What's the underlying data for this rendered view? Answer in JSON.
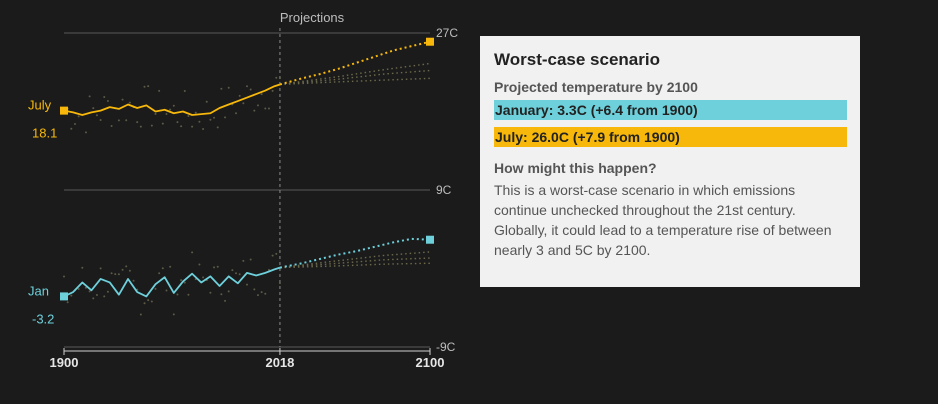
{
  "chart_data": {
    "type": "line",
    "projections_label": "Projections",
    "x_ticks": [
      1900,
      2018,
      2100
    ],
    "xlim": [
      1900,
      2100
    ],
    "split_year": 2018,
    "y_gridlines": [
      {
        "value": 27,
        "label": "27C"
      },
      {
        "value": 9,
        "label": "9C"
      },
      {
        "value": -9,
        "label": "-9C"
      }
    ],
    "series": [
      {
        "name": "July",
        "start_label": "18.1",
        "color": "#f7b80b",
        "historical": {
          "x": [
            1900,
            1905,
            1910,
            1915,
            1920,
            1925,
            1930,
            1935,
            1940,
            1945,
            1950,
            1955,
            1960,
            1965,
            1970,
            1975,
            1980,
            1985,
            1990,
            1995,
            2000,
            2005,
            2010,
            2015,
            2018
          ],
          "y": [
            18.1,
            17.9,
            17.6,
            17.9,
            18.1,
            18.5,
            18.3,
            18.8,
            18.4,
            18.7,
            18.0,
            18.2,
            17.8,
            18.0,
            17.6,
            17.7,
            17.8,
            18.4,
            18.8,
            19.2,
            19.6,
            20.0,
            20.4,
            20.9,
            21.1
          ]
        },
        "projection": {
          "x": [
            2018,
            2030,
            2040,
            2050,
            2060,
            2070,
            2080,
            2090,
            2100
          ],
          "y": [
            21.1,
            21.8,
            22.3,
            22.9,
            23.6,
            24.3,
            25.0,
            25.5,
            26.0
          ]
        },
        "alt_projections": [
          {
            "x": [
              2018,
              2050,
              2075,
              2100
            ],
            "y": [
              21.1,
              22.0,
              22.8,
              23.5
            ]
          },
          {
            "x": [
              2018,
              2050,
              2075,
              2100
            ],
            "y": [
              21.1,
              21.7,
              22.3,
              22.7
            ]
          },
          {
            "x": [
              2018,
              2050,
              2075,
              2100
            ],
            "y": [
              21.1,
              21.4,
              21.6,
              21.8
            ]
          }
        ]
      },
      {
        "name": "Jan",
        "start_label": "-3.2",
        "color": "#6dd0db",
        "historical": {
          "x": [
            1900,
            1905,
            1910,
            1915,
            1920,
            1925,
            1930,
            1935,
            1940,
            1945,
            1950,
            1955,
            1960,
            1965,
            1970,
            1975,
            1980,
            1985,
            1990,
            1995,
            2000,
            2005,
            2010,
            2015,
            2018
          ],
          "y": [
            -3.2,
            -2.7,
            -1.6,
            -2.5,
            -1.2,
            -1.6,
            -3.0,
            -1.2,
            -2.7,
            -3.2,
            -1.8,
            -1.0,
            -2.8,
            -1.5,
            -0.6,
            -1.6,
            -0.9,
            -2.0,
            -0.9,
            -1.7,
            -0.5,
            -0.8,
            -0.5,
            -0.1,
            0.1
          ]
        },
        "projection": {
          "x": [
            2018,
            2030,
            2040,
            2050,
            2060,
            2070,
            2080,
            2090,
            2100
          ],
          "y": [
            0.1,
            0.6,
            1.1,
            1.6,
            2.0,
            2.5,
            3.0,
            3.4,
            3.3
          ]
        },
        "alt_projections": [
          {
            "x": [
              2018,
              2050,
              2075,
              2100
            ],
            "y": [
              0.1,
              0.9,
              1.5,
              1.9
            ]
          },
          {
            "x": [
              2018,
              2050,
              2075,
              2100
            ],
            "y": [
              0.1,
              0.6,
              1.0,
              1.2
            ]
          },
          {
            "x": [
              2018,
              2050,
              2075,
              2100
            ],
            "y": [
              0.1,
              0.3,
              0.5,
              0.6
            ]
          }
        ]
      }
    ]
  },
  "panel": {
    "title": "Worst-case scenario",
    "subtitle": "Projected temperature by 2100",
    "january_bar": "January: 3.3C (+6.4 from 1900)",
    "july_bar": "July: 26.0C (+7.9 from 1900)",
    "question": "How might this happen?",
    "description": "This is a worst-case scenario in which emissions continue unchecked throughout the 21st century. Globally, it could lead to a temperature rise of between nearly 3 and 5C by 2100."
  }
}
